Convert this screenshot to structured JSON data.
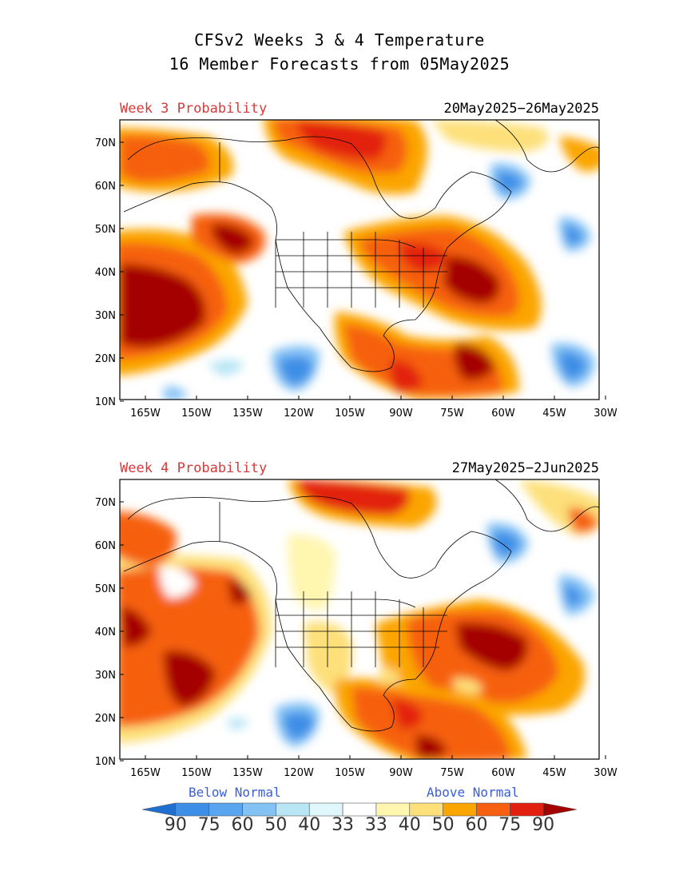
{
  "title": {
    "line1": "CFSv2 Weeks 3 & 4 Temperature",
    "line2": "16 Member Forecasts from 05May2025"
  },
  "panels": [
    {
      "label": "Week 3 Probability",
      "dates": "20May2025−26May2025"
    },
    {
      "label": "Week 4 Probability",
      "dates": "27May2025−2Jun2025"
    }
  ],
  "axes": {
    "lon_labels": [
      "165W",
      "150W",
      "135W",
      "120W",
      "105W",
      "90W",
      "75W",
      "60W",
      "45W",
      "30W"
    ],
    "lat_labels": [
      "70N",
      "60N",
      "50N",
      "40N",
      "30N",
      "20N",
      "10N"
    ],
    "lon_range": [
      -170,
      -30
    ],
    "lat_range": [
      10,
      75
    ]
  },
  "colorbar": {
    "below_label": "Below Normal",
    "above_label": "Above Normal",
    "below_color": "#3a5ed6",
    "above_color": "#3a5ed6",
    "tick_labels": [
      "90",
      "75",
      "60",
      "50",
      "40",
      "33",
      "33",
      "40",
      "50",
      "60",
      "75",
      "90"
    ],
    "colors": [
      "#1e6fd0",
      "#3c8ee6",
      "#5aa5f0",
      "#84c2f5",
      "#b8e6f5",
      "#e0f8fb",
      "#ffffff",
      "#fff6b0",
      "#fde07a",
      "#fba500",
      "#f66010",
      "#e22010",
      "#a50000"
    ]
  }
}
